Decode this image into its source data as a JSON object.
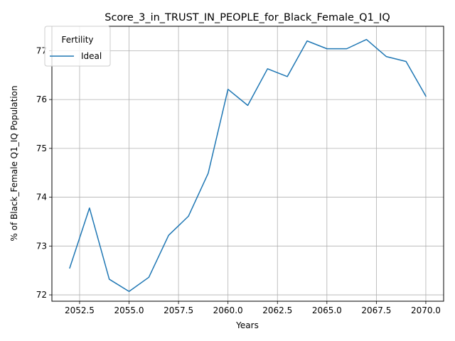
{
  "chart_data": {
    "type": "line",
    "title": "Score_3_in_TRUST_IN_PEOPLE_for_Black_Female_Q1_IQ",
    "xlabel": "Years",
    "ylabel": "% of Black_Female Q1_IQ Population",
    "xlim": [
      2051.1,
      2070.9
    ],
    "ylim": [
      71.87,
      77.5
    ],
    "x_ticks": [
      2052.5,
      2055.0,
      2057.5,
      2060.0,
      2062.5,
      2065.0,
      2067.5,
      2070.0
    ],
    "x_tick_labels": [
      "2052.5",
      "2055.0",
      "2057.5",
      "2060.0",
      "2062.5",
      "2065.0",
      "2067.5",
      "2070.0"
    ],
    "y_ticks": [
      72,
      73,
      74,
      75,
      76,
      77
    ],
    "y_tick_labels": [
      "72",
      "73",
      "74",
      "75",
      "76",
      "77"
    ],
    "grid": true,
    "legend": {
      "title": "Fertility",
      "placement": "top-left"
    },
    "series": [
      {
        "name": "Ideal",
        "color": "#1f77b4",
        "x": [
          2052,
          2053,
          2054,
          2055,
          2056,
          2057,
          2058,
          2059,
          2060,
          2061,
          2062,
          2063,
          2064,
          2065,
          2066,
          2067,
          2068,
          2069,
          2070
        ],
        "y": [
          72.55,
          73.78,
          72.32,
          72.07,
          72.36,
          73.22,
          73.61,
          74.49,
          76.21,
          75.88,
          76.63,
          76.47,
          77.2,
          77.04,
          77.04,
          77.23,
          76.88,
          76.78,
          76.07
        ]
      }
    ]
  }
}
